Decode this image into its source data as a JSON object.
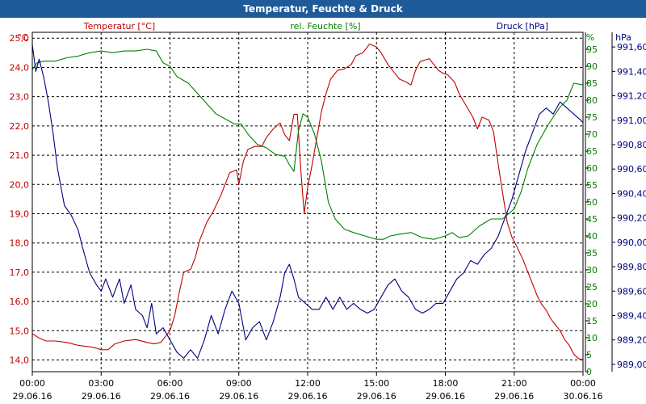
{
  "title": "Temperatur, Feuchte & Druck",
  "colors": {
    "temperature": "#c00000",
    "humidity": "#008000",
    "pressure": "#000080",
    "title_bg": "#1f5b99",
    "grid": "#000000"
  },
  "chart_data": {
    "type": "line",
    "title": "Temperatur, Feuchte & Druck",
    "x_unit": "hours since 29.06.16 00:00",
    "xlim": [
      0,
      24
    ],
    "x_ticks": [
      {
        "time": "00:00",
        "date": "29.06.16"
      },
      {
        "time": "03:00",
        "date": "29.06.16"
      },
      {
        "time": "06:00",
        "date": "29.06.16"
      },
      {
        "time": "09:00",
        "date": "29.06.16"
      },
      {
        "time": "12:00",
        "date": "29.06.16"
      },
      {
        "time": "15:00",
        "date": "29.06.16"
      },
      {
        "time": "18:00",
        "date": "29.06.16"
      },
      {
        "time": "21:00",
        "date": "29.06.16"
      },
      {
        "time": "00:00",
        "date": "30.06.16"
      }
    ],
    "axes": {
      "temperature": {
        "label": "Temperatur [°C]",
        "unit": "°C",
        "ylim": [
          13.6,
          25.2
        ],
        "ticks": [
          "25,0",
          "24,0",
          "23,0",
          "22,0",
          "21,0",
          "20,0",
          "19,0",
          "18,0",
          "17,0",
          "16,0",
          "15,0",
          "14,0"
        ],
        "tick_values": [
          25,
          24,
          23,
          22,
          21,
          20,
          19,
          18,
          17,
          16,
          15,
          14
        ]
      },
      "humidity": {
        "label": "rel. Feuchte [%]",
        "unit": "%",
        "ylim": [
          0,
          100
        ],
        "ticks": [
          "95",
          "90",
          "85",
          "80",
          "75",
          "70",
          "65",
          "60",
          "55",
          "50",
          "45",
          "40",
          "35",
          "30",
          "25",
          "20",
          "15",
          "10",
          "5",
          "0"
        ],
        "tick_values": [
          95,
          90,
          85,
          80,
          75,
          70,
          65,
          60,
          55,
          50,
          45,
          40,
          35,
          30,
          25,
          20,
          15,
          10,
          5,
          0
        ]
      },
      "pressure": {
        "label": "Druck [hPa]",
        "unit": "hPa",
        "ylim": [
          988.94,
          991.72
        ],
        "ticks": [
          "991,60",
          "991,40",
          "991,20",
          "991,00",
          "990,80",
          "990,60",
          "990,40",
          "990,20",
          "990,00",
          "989,80",
          "989,60",
          "989,40",
          "989,20",
          "989,00"
        ],
        "tick_values": [
          991.6,
          991.4,
          991.2,
          991.0,
          990.8,
          990.6,
          990.4,
          990.2,
          990.0,
          989.8,
          989.6,
          989.4,
          989.2,
          989.0
        ]
      }
    },
    "series": [
      {
        "name": "Temperatur [°C]",
        "axis": "temperature",
        "points": [
          [
            0,
            14.9
          ],
          [
            0.3,
            14.75
          ],
          [
            0.6,
            14.65
          ],
          [
            1,
            14.65
          ],
          [
            1.5,
            14.6
          ],
          [
            2,
            14.5
          ],
          [
            2.5,
            14.45
          ],
          [
            2.8,
            14.4
          ],
          [
            3,
            14.35
          ],
          [
            3.3,
            14.35
          ],
          [
            3.6,
            14.55
          ],
          [
            4,
            14.65
          ],
          [
            4.5,
            14.7
          ],
          [
            5,
            14.6
          ],
          [
            5.3,
            14.55
          ],
          [
            5.6,
            14.6
          ],
          [
            6,
            15.0
          ],
          [
            6.2,
            15.5
          ],
          [
            6.4,
            16.3
          ],
          [
            6.6,
            17.0
          ],
          [
            6.9,
            17.1
          ],
          [
            7.1,
            17.5
          ],
          [
            7.3,
            18.1
          ],
          [
            7.6,
            18.7
          ],
          [
            7.9,
            19.1
          ],
          [
            8.2,
            19.6
          ],
          [
            8.4,
            20.0
          ],
          [
            8.6,
            20.4
          ],
          [
            8.9,
            20.5
          ],
          [
            9.0,
            20.0
          ],
          [
            9.2,
            20.8
          ],
          [
            9.4,
            21.2
          ],
          [
            9.7,
            21.3
          ],
          [
            10.0,
            21.3
          ],
          [
            10.2,
            21.6
          ],
          [
            10.5,
            21.9
          ],
          [
            10.8,
            22.1
          ],
          [
            11.0,
            21.7
          ],
          [
            11.2,
            21.5
          ],
          [
            11.4,
            22.4
          ],
          [
            11.55,
            22.4
          ],
          [
            11.7,
            20.5
          ],
          [
            11.85,
            19.0
          ],
          [
            12.0,
            19.9
          ],
          [
            12.2,
            20.7
          ],
          [
            12.4,
            21.6
          ],
          [
            12.6,
            22.5
          ],
          [
            12.8,
            23.1
          ],
          [
            13.0,
            23.6
          ],
          [
            13.3,
            23.9
          ],
          [
            13.6,
            23.95
          ],
          [
            13.9,
            24.1
          ],
          [
            14.1,
            24.4
          ],
          [
            14.4,
            24.5
          ],
          [
            14.7,
            24.8
          ],
          [
            15.0,
            24.7
          ],
          [
            15.2,
            24.5
          ],
          [
            15.5,
            24.1
          ],
          [
            15.8,
            23.8
          ],
          [
            16.0,
            23.6
          ],
          [
            16.3,
            23.5
          ],
          [
            16.5,
            23.4
          ],
          [
            16.7,
            23.9
          ],
          [
            16.9,
            24.2
          ],
          [
            17.1,
            24.25
          ],
          [
            17.3,
            24.3
          ],
          [
            17.5,
            24.1
          ],
          [
            17.7,
            23.9
          ],
          [
            17.9,
            23.8
          ],
          [
            18.1,
            23.75
          ],
          [
            18.4,
            23.5
          ],
          [
            18.6,
            23.1
          ],
          [
            18.9,
            22.7
          ],
          [
            19.2,
            22.3
          ],
          [
            19.4,
            21.9
          ],
          [
            19.6,
            22.3
          ],
          [
            19.9,
            22.2
          ],
          [
            20.1,
            21.8
          ],
          [
            20.3,
            20.7
          ],
          [
            20.5,
            19.7
          ],
          [
            20.7,
            18.7
          ],
          [
            20.9,
            18.2
          ],
          [
            21.1,
            17.9
          ],
          [
            21.4,
            17.4
          ],
          [
            21.6,
            17.0
          ],
          [
            21.8,
            16.6
          ],
          [
            22.0,
            16.2
          ],
          [
            22.2,
            15.9
          ],
          [
            22.4,
            15.7
          ],
          [
            22.6,
            15.4
          ],
          [
            22.8,
            15.2
          ],
          [
            23.0,
            15.0
          ],
          [
            23.2,
            14.7
          ],
          [
            23.4,
            14.5
          ],
          [
            23.6,
            14.2
          ],
          [
            23.8,
            14.05
          ],
          [
            24.0,
            14.0
          ]
        ]
      },
      {
        "name": "rel. Feuchte [%]",
        "axis": "humidity",
        "points": [
          [
            0,
            89
          ],
          [
            0.2,
            91
          ],
          [
            0.5,
            91.5
          ],
          [
            1.0,
            91.5
          ],
          [
            1.5,
            92.5
          ],
          [
            2.0,
            93
          ],
          [
            2.5,
            94
          ],
          [
            3.0,
            94.5
          ],
          [
            3.5,
            94
          ],
          [
            4.0,
            94.5
          ],
          [
            4.5,
            94.5
          ],
          [
            5.0,
            95
          ],
          [
            5.4,
            94.5
          ],
          [
            5.7,
            91
          ],
          [
            6.0,
            90
          ],
          [
            6.3,
            87
          ],
          [
            6.8,
            85
          ],
          [
            7.2,
            82
          ],
          [
            7.6,
            79
          ],
          [
            8.0,
            76
          ],
          [
            8.4,
            74.5
          ],
          [
            8.8,
            73
          ],
          [
            9.1,
            73
          ],
          [
            9.4,
            70
          ],
          [
            9.8,
            67
          ],
          [
            10.2,
            66
          ],
          [
            10.6,
            64
          ],
          [
            11.0,
            63.5
          ],
          [
            11.2,
            61
          ],
          [
            11.4,
            59
          ],
          [
            11.6,
            71
          ],
          [
            11.8,
            76
          ],
          [
            12.0,
            75
          ],
          [
            12.3,
            70
          ],
          [
            12.6,
            62
          ],
          [
            12.9,
            50
          ],
          [
            13.2,
            45
          ],
          [
            13.6,
            42
          ],
          [
            14.0,
            41
          ],
          [
            14.5,
            40
          ],
          [
            15.0,
            39
          ],
          [
            15.3,
            39
          ],
          [
            15.6,
            40
          ],
          [
            16.0,
            40.5
          ],
          [
            16.5,
            41
          ],
          [
            17.0,
            39.5
          ],
          [
            17.5,
            39
          ],
          [
            18.0,
            40
          ],
          [
            18.3,
            41
          ],
          [
            18.6,
            39.5
          ],
          [
            19.0,
            40
          ],
          [
            19.5,
            43
          ],
          [
            20.0,
            45
          ],
          [
            20.5,
            45
          ],
          [
            21.0,
            48
          ],
          [
            21.3,
            53
          ],
          [
            21.6,
            60
          ],
          [
            22.0,
            67
          ],
          [
            22.5,
            73
          ],
          [
            23.0,
            78
          ],
          [
            23.3,
            80
          ],
          [
            23.6,
            85
          ],
          [
            24.0,
            84.5
          ]
        ]
      },
      {
        "name": "Druck [hPa]",
        "axis": "pressure",
        "points": [
          [
            0,
            991.62
          ],
          [
            0.15,
            991.4
          ],
          [
            0.3,
            991.5
          ],
          [
            0.5,
            991.35
          ],
          [
            0.7,
            991.15
          ],
          [
            0.9,
            990.9
          ],
          [
            1.1,
            990.6
          ],
          [
            1.4,
            990.3
          ],
          [
            1.7,
            990.22
          ],
          [
            2.0,
            990.1
          ],
          [
            2.2,
            989.95
          ],
          [
            2.5,
            989.75
          ],
          [
            2.8,
            989.65
          ],
          [
            3.0,
            989.6
          ],
          [
            3.2,
            989.7
          ],
          [
            3.5,
            989.55
          ],
          [
            3.8,
            989.7
          ],
          [
            4.0,
            989.5
          ],
          [
            4.3,
            989.65
          ],
          [
            4.5,
            989.45
          ],
          [
            4.8,
            989.4
          ],
          [
            5.0,
            989.3
          ],
          [
            5.2,
            989.5
          ],
          [
            5.4,
            989.25
          ],
          [
            5.7,
            989.3
          ],
          [
            6.0,
            989.2
          ],
          [
            6.3,
            989.1
          ],
          [
            6.6,
            989.05
          ],
          [
            6.9,
            989.12
          ],
          [
            7.2,
            989.05
          ],
          [
            7.5,
            989.2
          ],
          [
            7.8,
            989.4
          ],
          [
            8.1,
            989.25
          ],
          [
            8.4,
            989.45
          ],
          [
            8.7,
            989.6
          ],
          [
            9.0,
            989.5
          ],
          [
            9.3,
            989.2
          ],
          [
            9.6,
            989.3
          ],
          [
            9.9,
            989.35
          ],
          [
            10.2,
            989.2
          ],
          [
            10.5,
            989.35
          ],
          [
            10.8,
            989.55
          ],
          [
            11.0,
            989.75
          ],
          [
            11.2,
            989.82
          ],
          [
            11.4,
            989.7
          ],
          [
            11.6,
            989.55
          ],
          [
            11.9,
            989.5
          ],
          [
            12.2,
            989.45
          ],
          [
            12.5,
            989.45
          ],
          [
            12.8,
            989.55
          ],
          [
            13.1,
            989.45
          ],
          [
            13.4,
            989.55
          ],
          [
            13.7,
            989.45
          ],
          [
            14.0,
            989.5
          ],
          [
            14.3,
            989.45
          ],
          [
            14.6,
            989.42
          ],
          [
            14.9,
            989.45
          ],
          [
            15.2,
            989.55
          ],
          [
            15.5,
            989.65
          ],
          [
            15.8,
            989.7
          ],
          [
            16.1,
            989.6
          ],
          [
            16.4,
            989.55
          ],
          [
            16.7,
            989.45
          ],
          [
            17.0,
            989.42
          ],
          [
            17.3,
            989.45
          ],
          [
            17.6,
            989.5
          ],
          [
            17.9,
            989.5
          ],
          [
            18.2,
            989.6
          ],
          [
            18.5,
            989.7
          ],
          [
            18.8,
            989.75
          ],
          [
            19.1,
            989.85
          ],
          [
            19.4,
            989.82
          ],
          [
            19.7,
            989.9
          ],
          [
            20.0,
            989.95
          ],
          [
            20.3,
            990.05
          ],
          [
            20.6,
            990.2
          ],
          [
            20.9,
            990.35
          ],
          [
            21.2,
            990.55
          ],
          [
            21.5,
            990.75
          ],
          [
            21.8,
            990.9
          ],
          [
            22.1,
            991.05
          ],
          [
            22.4,
            991.1
          ],
          [
            22.7,
            991.05
          ],
          [
            23.0,
            991.15
          ],
          [
            23.3,
            991.1
          ],
          [
            23.6,
            991.05
          ],
          [
            23.9,
            991.0
          ],
          [
            24.0,
            990.98
          ]
        ]
      }
    ]
  }
}
